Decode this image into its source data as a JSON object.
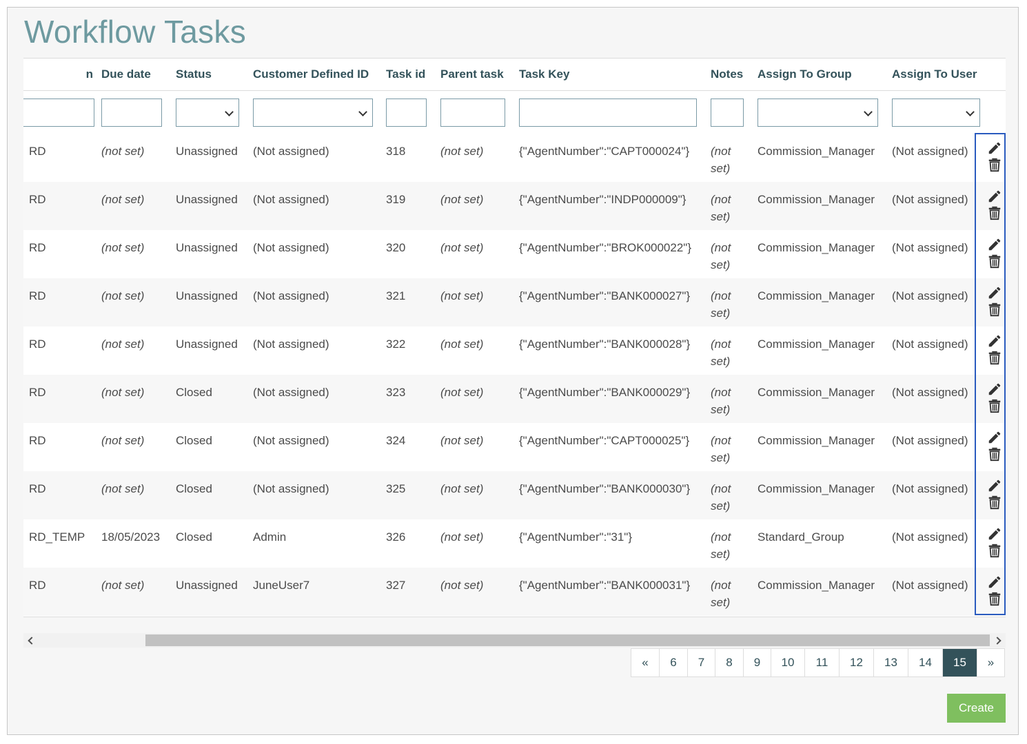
{
  "page": {
    "title": "Workflow Tasks"
  },
  "columns": {
    "name": "n",
    "due_date": "Due date",
    "status": "Status",
    "customer_defined_id": "Customer Defined ID",
    "task_id": "Task id",
    "parent_task": "Parent task",
    "task_key": "Task Key",
    "notes": "Notes",
    "assign_to_group": "Assign To Group",
    "assign_to_user": "Assign To User"
  },
  "rows": [
    {
      "name": "RD",
      "due_date": "(not set)",
      "status": "Unassigned",
      "customer_defined_id": "(Not assigned)",
      "task_id": "318",
      "parent_task": "(not set)",
      "task_key": "{\"AgentNumber\":\"CAPT000024\"}",
      "notes": "(not set)",
      "assign_to_group": "Commission_Manager",
      "assign_to_user": "(Not assigned)"
    },
    {
      "name": "RD",
      "due_date": "(not set)",
      "status": "Unassigned",
      "customer_defined_id": "(Not assigned)",
      "task_id": "319",
      "parent_task": "(not set)",
      "task_key": "{\"AgentNumber\":\"INDP000009\"}",
      "notes": "(not set)",
      "assign_to_group": "Commission_Manager",
      "assign_to_user": "(Not assigned)"
    },
    {
      "name": "RD",
      "due_date": "(not set)",
      "status": "Unassigned",
      "customer_defined_id": "(Not assigned)",
      "task_id": "320",
      "parent_task": "(not set)",
      "task_key": "{\"AgentNumber\":\"BROK000022\"}",
      "notes": "(not set)",
      "assign_to_group": "Commission_Manager",
      "assign_to_user": "(Not assigned)"
    },
    {
      "name": "RD",
      "due_date": "(not set)",
      "status": "Unassigned",
      "customer_defined_id": "(Not assigned)",
      "task_id": "321",
      "parent_task": "(not set)",
      "task_key": "{\"AgentNumber\":\"BANK000027\"}",
      "notes": "(not set)",
      "assign_to_group": "Commission_Manager",
      "assign_to_user": "(Not assigned)"
    },
    {
      "name": "RD",
      "due_date": "(not set)",
      "status": "Unassigned",
      "customer_defined_id": "(Not assigned)",
      "task_id": "322",
      "parent_task": "(not set)",
      "task_key": "{\"AgentNumber\":\"BANK000028\"}",
      "notes": "(not set)",
      "assign_to_group": "Commission_Manager",
      "assign_to_user": "(Not assigned)"
    },
    {
      "name": "RD",
      "due_date": "(not set)",
      "status": "Closed",
      "customer_defined_id": "(Not assigned)",
      "task_id": "323",
      "parent_task": "(not set)",
      "task_key": "{\"AgentNumber\":\"BANK000029\"}",
      "notes": "(not set)",
      "assign_to_group": "Commission_Manager",
      "assign_to_user": "(Not assigned)"
    },
    {
      "name": "RD",
      "due_date": "(not set)",
      "status": "Closed",
      "customer_defined_id": "(Not assigned)",
      "task_id": "324",
      "parent_task": "(not set)",
      "task_key": "{\"AgentNumber\":\"CAPT000025\"}",
      "notes": "(not set)",
      "assign_to_group": "Commission_Manager",
      "assign_to_user": "(Not assigned)"
    },
    {
      "name": "RD",
      "due_date": "(not set)",
      "status": "Closed",
      "customer_defined_id": "(Not assigned)",
      "task_id": "325",
      "parent_task": "(not set)",
      "task_key": "{\"AgentNumber\":\"BANK000030\"}",
      "notes": "(not set)",
      "assign_to_group": "Commission_Manager",
      "assign_to_user": "(Not assigned)"
    },
    {
      "name": "RD_TEMP",
      "due_date": "18/05/2023",
      "status": "Closed",
      "customer_defined_id": "Admin",
      "task_id": "326",
      "parent_task": "(not set)",
      "task_key": "{\"AgentNumber\":\"31\"}",
      "notes": "(not set)",
      "assign_to_group": "Standard_Group",
      "assign_to_user": "(Not assigned)"
    },
    {
      "name": "RD",
      "due_date": "(not set)",
      "status": "Unassigned",
      "customer_defined_id": "JuneUser7",
      "task_id": "327",
      "parent_task": "(not set)",
      "task_key": "{\"AgentNumber\":\"BANK000031\"}",
      "notes": "(not set)",
      "assign_to_group": "Commission_Manager",
      "assign_to_user": "(Not assigned)"
    }
  ],
  "icons": {
    "edit": "pencil-icon",
    "delete": "trash-icon",
    "select": "chevron-down-icon"
  },
  "pagination": {
    "prev": "«",
    "next": "»",
    "pages": [
      "6",
      "7",
      "8",
      "9",
      "10",
      "11",
      "12",
      "13",
      "14",
      "15"
    ],
    "active": "15"
  },
  "actions": {
    "create_label": "Create"
  },
  "colors": {
    "title": "#6e9aa0",
    "not_set": "#c0392b",
    "not_assigned": "#8a6d3b",
    "active_page": "#33525a",
    "create_button": "#7fbf5f",
    "actions_outline": "#2a5bbf"
  }
}
